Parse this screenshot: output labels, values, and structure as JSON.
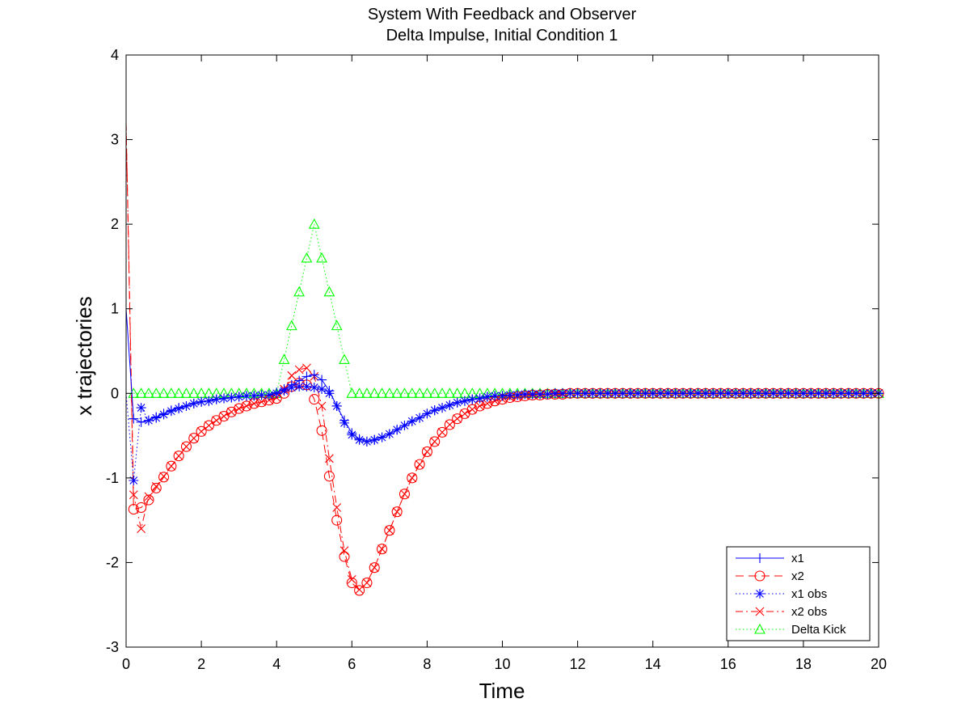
{
  "chart_data": {
    "type": "line",
    "title": "System With Feedback and Observer",
    "subtitle": "Delta Impulse, Initial Condition 1",
    "xlabel": "Time",
    "ylabel": "x trajectories",
    "xlim": [
      0,
      20
    ],
    "ylim": [
      -3,
      4
    ],
    "xticks": [
      0,
      2,
      4,
      6,
      8,
      10,
      12,
      14,
      16,
      18,
      20
    ],
    "yticks": [
      -3,
      -2,
      -1,
      0,
      1,
      2,
      3,
      4
    ],
    "grid": false,
    "legend_position": "bottom-right",
    "x": [
      0.0,
      0.2,
      0.4,
      0.6,
      0.8,
      1.0,
      1.2,
      1.4,
      1.6,
      1.8,
      2.0,
      2.2,
      2.4,
      2.6,
      2.8,
      3.0,
      3.2,
      3.4,
      3.6,
      3.8,
      4.0,
      4.2,
      4.4,
      4.6,
      4.8,
      5.0,
      5.2,
      5.4,
      5.6,
      5.8,
      6.0,
      6.2,
      6.4,
      6.6,
      6.8,
      7.0,
      7.2,
      7.4,
      7.6,
      7.8,
      8.0,
      8.2,
      8.4,
      8.6,
      8.8,
      9.0,
      9.2,
      9.4,
      9.6,
      9.8,
      10.0,
      10.2,
      10.4,
      10.6,
      10.8,
      11.0,
      11.2,
      11.4,
      11.6,
      11.8,
      12.0,
      12.2,
      12.4,
      12.6,
      12.8,
      13.0,
      13.2,
      13.4,
      13.6,
      13.8,
      14.0,
      14.2,
      14.4,
      14.6,
      14.8,
      15.0,
      15.2,
      15.4,
      15.6,
      15.8,
      16.0,
      16.2,
      16.4,
      16.6,
      16.8,
      17.0,
      17.2,
      17.4,
      17.6,
      17.8,
      18.0,
      18.2,
      18.4,
      18.6,
      18.8,
      19.0,
      19.2,
      19.4,
      19.6,
      19.8,
      20.0
    ],
    "series": [
      {
        "name": "x1",
        "color": "#0000ff",
        "dash": "solid",
        "marker": "plus",
        "values": [
          1.0,
          -0.3,
          -0.34,
          -0.32,
          -0.28,
          -0.24,
          -0.2,
          -0.17,
          -0.15,
          -0.12,
          -0.1,
          -0.09,
          -0.07,
          -0.06,
          -0.05,
          -0.04,
          -0.03,
          -0.03,
          -0.02,
          -0.02,
          0.01,
          0.05,
          0.1,
          0.15,
          0.2,
          0.22,
          0.16,
          0.03,
          -0.15,
          -0.32,
          -0.47,
          -0.54,
          -0.57,
          -0.55,
          -0.52,
          -0.48,
          -0.43,
          -0.38,
          -0.33,
          -0.29,
          -0.24,
          -0.2,
          -0.17,
          -0.14,
          -0.11,
          -0.09,
          -0.07,
          -0.06,
          -0.04,
          -0.03,
          -0.03,
          -0.02,
          -0.02,
          -0.01,
          -0.01,
          -0.01,
          -0.01,
          0.0,
          0.0,
          0.0,
          0.0,
          0.0,
          0.0,
          0.0,
          0.0,
          0.0,
          0.0,
          0.0,
          0.0,
          0.0,
          0.0,
          0.0,
          0.0,
          0.0,
          0.0,
          0.0,
          0.0,
          0.0,
          0.0,
          0.0,
          0.0,
          0.0,
          0.0,
          0.0,
          0.0,
          0.0,
          0.0,
          0.0,
          0.0,
          0.0,
          0.0,
          0.0,
          0.0,
          0.0,
          0.0,
          0.0,
          0.0,
          0.0,
          0.0,
          0.0,
          0.0
        ]
      },
      {
        "name": "x2",
        "color": "#ff0000",
        "dash": "dashed",
        "marker": "circle",
        "values": [
          3.2,
          -1.37,
          -1.35,
          -1.26,
          -1.12,
          -0.99,
          -0.86,
          -0.74,
          -0.63,
          -0.53,
          -0.45,
          -0.38,
          -0.32,
          -0.27,
          -0.22,
          -0.18,
          -0.15,
          -0.12,
          -0.1,
          -0.08,
          -0.06,
          0.0,
          0.08,
          0.12,
          0.1,
          -0.07,
          -0.44,
          -0.98,
          -1.5,
          -1.93,
          -2.24,
          -2.33,
          -2.24,
          -2.06,
          -1.84,
          -1.62,
          -1.4,
          -1.19,
          -1.0,
          -0.84,
          -0.69,
          -0.57,
          -0.46,
          -0.37,
          -0.3,
          -0.24,
          -0.19,
          -0.15,
          -0.12,
          -0.09,
          -0.07,
          -0.05,
          -0.04,
          -0.03,
          -0.02,
          -0.02,
          -0.01,
          -0.01,
          -0.01,
          0.0,
          0.0,
          0.0,
          0.0,
          0.0,
          0.0,
          0.0,
          0.0,
          0.0,
          0.0,
          0.0,
          0.0,
          0.0,
          0.0,
          0.0,
          0.0,
          0.0,
          0.0,
          0.0,
          0.0,
          0.0,
          0.0,
          0.0,
          0.0,
          0.0,
          0.0,
          0.0,
          0.0,
          0.0,
          0.0,
          0.0,
          0.0,
          0.0,
          0.0,
          0.0,
          0.0,
          0.0,
          0.0,
          0.0,
          0.0,
          0.0,
          0.0
        ]
      },
      {
        "name": "x1 obs",
        "color": "#0000ff",
        "dash": "dotted",
        "marker": "star",
        "values": [
          0.0,
          -1.03,
          -0.17,
          -0.32,
          -0.29,
          -0.25,
          -0.21,
          -0.18,
          -0.15,
          -0.12,
          -0.1,
          -0.09,
          -0.07,
          -0.06,
          -0.05,
          -0.04,
          -0.03,
          -0.03,
          -0.02,
          -0.02,
          0.0,
          0.03,
          0.07,
          0.08,
          0.08,
          0.07,
          0.05,
          0.0,
          -0.15,
          -0.35,
          -0.49,
          -0.55,
          -0.57,
          -0.55,
          -0.52,
          -0.48,
          -0.43,
          -0.38,
          -0.33,
          -0.29,
          -0.24,
          -0.2,
          -0.17,
          -0.14,
          -0.11,
          -0.09,
          -0.07,
          -0.06,
          -0.04,
          -0.03,
          -0.03,
          -0.02,
          -0.02,
          -0.01,
          -0.01,
          -0.01,
          -0.01,
          0.0,
          0.0,
          0.0,
          0.0,
          0.0,
          0.0,
          0.0,
          0.0,
          0.0,
          0.0,
          0.0,
          0.0,
          0.0,
          0.0,
          0.0,
          0.0,
          0.0,
          0.0,
          0.0,
          0.0,
          0.0,
          0.0,
          0.0,
          0.0,
          0.0,
          0.0,
          0.0,
          0.0,
          0.0,
          0.0,
          0.0,
          0.0,
          0.0,
          0.0,
          0.0,
          0.0,
          0.0,
          0.0,
          0.0,
          0.0,
          0.0,
          0.0,
          0.0,
          0.0
        ]
      },
      {
        "name": "x2 obs",
        "color": "#ff0000",
        "dash": "dashdot",
        "marker": "x",
        "values": [
          3.2,
          -1.2,
          -1.6,
          -1.22,
          -1.1,
          -0.98,
          -0.86,
          -0.74,
          -0.63,
          -0.53,
          -0.45,
          -0.38,
          -0.32,
          -0.27,
          -0.22,
          -0.18,
          -0.15,
          -0.12,
          -0.1,
          -0.08,
          -0.05,
          0.05,
          0.21,
          0.28,
          0.3,
          0.2,
          -0.15,
          -0.77,
          -1.35,
          -1.86,
          -2.2,
          -2.32,
          -2.24,
          -2.06,
          -1.84,
          -1.62,
          -1.4,
          -1.19,
          -1.0,
          -0.84,
          -0.69,
          -0.57,
          -0.46,
          -0.37,
          -0.3,
          -0.24,
          -0.19,
          -0.15,
          -0.12,
          -0.09,
          -0.07,
          -0.05,
          -0.04,
          -0.03,
          -0.02,
          -0.02,
          -0.01,
          -0.01,
          -0.01,
          0.0,
          0.0,
          0.0,
          0.0,
          0.0,
          0.0,
          0.0,
          0.0,
          0.0,
          0.0,
          0.0,
          0.0,
          0.0,
          0.0,
          0.0,
          0.0,
          0.0,
          0.0,
          0.0,
          0.0,
          0.0,
          0.0,
          0.0,
          0.0,
          0.0,
          0.0,
          0.0,
          0.0,
          0.0,
          0.0,
          0.0,
          0.0,
          0.0,
          0.0,
          0.0,
          0.0,
          0.0,
          0.0,
          0.0,
          0.0,
          0.0,
          0.0
        ]
      },
      {
        "name": "Delta Kick",
        "color": "#00ff00",
        "dash": "dotted",
        "marker": "triangle",
        "values": [
          0,
          0,
          0,
          0,
          0,
          0,
          0,
          0,
          0,
          0,
          0,
          0,
          0,
          0,
          0,
          0,
          0,
          0,
          0,
          0,
          0,
          0.4,
          0.8,
          1.2,
          1.6,
          2.0,
          1.6,
          1.2,
          0.8,
          0.4,
          0,
          0,
          0,
          0,
          0,
          0,
          0,
          0,
          0,
          0,
          0,
          0,
          0,
          0,
          0,
          0,
          0,
          0,
          0,
          0,
          0,
          0,
          0,
          0,
          0,
          0,
          0,
          0,
          0,
          0,
          0,
          0,
          0,
          0,
          0,
          0,
          0,
          0,
          0,
          0,
          0,
          0,
          0,
          0,
          0,
          0,
          0,
          0,
          0,
          0,
          0,
          0,
          0,
          0,
          0,
          0,
          0,
          0,
          0,
          0,
          0,
          0,
          0,
          0,
          0,
          0,
          0,
          0,
          0,
          0,
          0
        ]
      }
    ]
  }
}
